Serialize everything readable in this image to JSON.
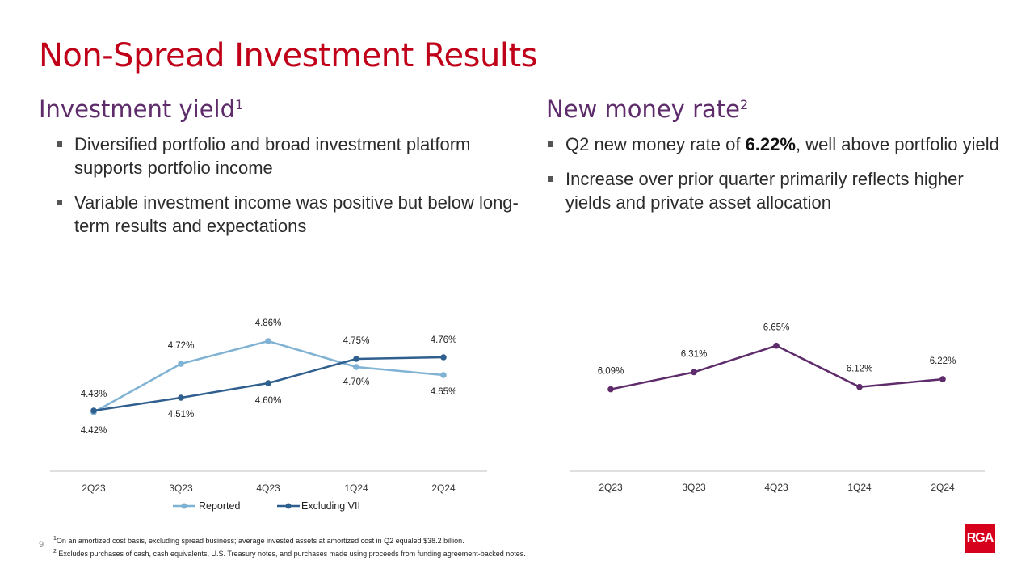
{
  "title": "Non-Spread Investment Results",
  "left": {
    "heading": "Investment yield",
    "heading_sup": "1",
    "bullets": [
      "Diversified portfolio and broad investment platform supports portfolio income",
      "Variable investment income was positive but below long-term results and expectations"
    ]
  },
  "right": {
    "heading": "New money rate",
    "heading_sup": "2",
    "bullet1_pre": "Q2 new money rate of ",
    "bullet1_bold": "6.22%",
    "bullet1_post": ", well above portfolio yield",
    "bullet2": "Increase over prior quarter primarily reflects higher yields and private asset allocation"
  },
  "chart_data": [
    {
      "type": "line",
      "categories": [
        "2Q23",
        "3Q23",
        "4Q23",
        "1Q24",
        "2Q24"
      ],
      "series": [
        {
          "name": "Reported",
          "values": [
            4.42,
            4.72,
            4.86,
            4.7,
            4.65
          ],
          "labels": [
            "4.42%",
            "4.72%",
            "4.86%",
            "4.70%",
            "4.65%"
          ],
          "color": "#7fb2d3"
        },
        {
          "name": "Excluding VII",
          "values": [
            4.43,
            4.51,
            4.6,
            4.75,
            4.76
          ],
          "labels": [
            "4.43%",
            "4.51%",
            "4.60%",
            "4.75%",
            "4.76%"
          ],
          "color": "#2f5f8e"
        }
      ],
      "ylim": [
        4.2,
        5.0
      ],
      "legend": "bottom",
      "grid": false
    },
    {
      "type": "line",
      "categories": [
        "2Q23",
        "3Q23",
        "4Q23",
        "1Q24",
        "2Q24"
      ],
      "series": [
        {
          "name": "New money rate",
          "values": [
            6.09,
            6.31,
            6.65,
            6.12,
            6.22
          ],
          "labels": [
            "6.09%",
            "6.31%",
            "6.65%",
            "6.12%",
            "6.22%"
          ],
          "color": "#5e2b6b"
        }
      ],
      "ylim": [
        5.4,
        7.0
      ],
      "legend": "none",
      "grid": false
    }
  ],
  "footnotes": {
    "note1_sup": "1",
    "note1": "On an amortized cost basis, excluding spread business; average invested assets at amortized cost in Q2 equaled $38.2 billion.",
    "note2_sup": "2",
    "note2": "Excludes purchases of cash, cash equivalents, U.S. Treasury notes, and purchases made using proceeds from funding agreement-backed notes."
  },
  "page_number": "9",
  "logo_text": "RGA",
  "colors": {
    "title": "#c00018",
    "heading": "#5e2b6b",
    "logo": "#d6001c"
  }
}
